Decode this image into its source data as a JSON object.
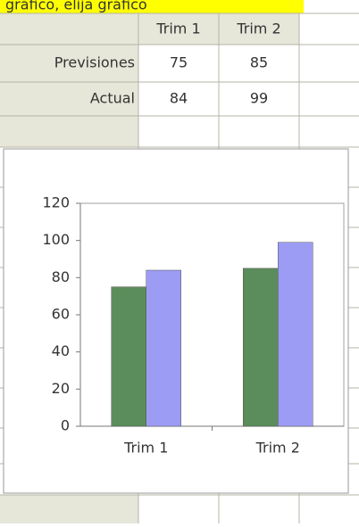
{
  "banner": "gráfico, elija gráfico",
  "table": {
    "header": [
      "Trim 1",
      "Trim 2"
    ],
    "rows": [
      {
        "label": "Previsiones",
        "cells": [
          75,
          85
        ]
      },
      {
        "label": "Actual",
        "cells": [
          84,
          99
        ]
      }
    ]
  },
  "chart_data": {
    "type": "bar",
    "categories": [
      "Trim 1",
      "Trim 2"
    ],
    "series": [
      {
        "color": "#5b8c5b",
        "values": [
          75,
          85
        ]
      },
      {
        "color": "#9c9cf5",
        "values": [
          84,
          99
        ]
      }
    ],
    "ylim": [
      0,
      120
    ],
    "yticks": [
      0,
      20,
      40,
      60,
      80,
      100,
      120
    ],
    "grid": false
  }
}
